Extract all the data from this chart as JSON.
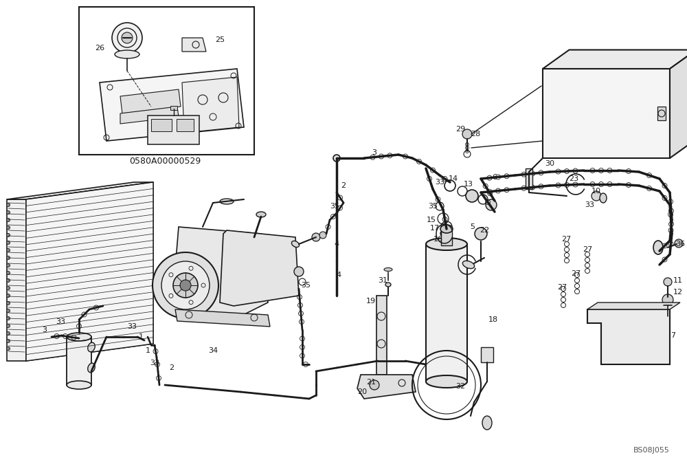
{
  "bg_color": "#ffffff",
  "line_color": "#1a1a1a",
  "watermark": "BS08J055",
  "box_label": "0580A00000529",
  "fig_width": 10.0,
  "fig_height": 6.72,
  "dpi": 100
}
